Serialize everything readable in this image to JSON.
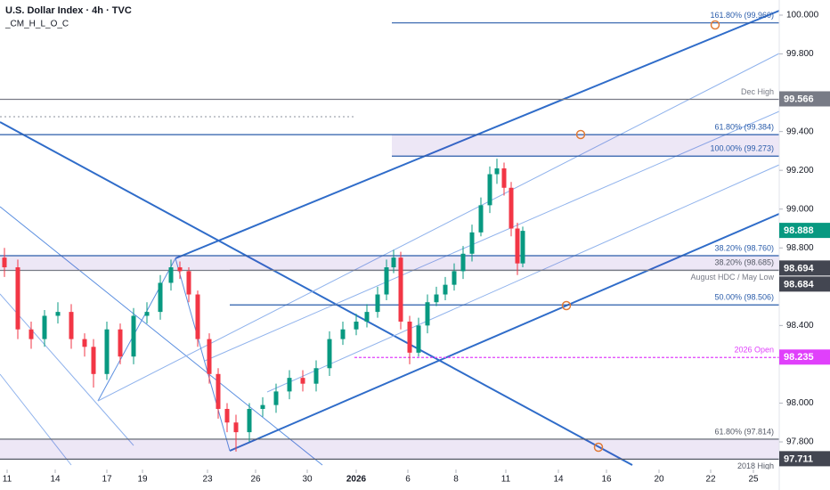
{
  "chart_data": {
    "type": "candlestick",
    "title": "U.S. Dollar Index · 4h · TVC",
    "subtitle": "_CM_H_L_O_C",
    "xlim": [
      0,
      86.5
    ],
    "ylim": [
      97.552,
      100.078
    ],
    "xticks": [
      {
        "value": 0.8,
        "label": "11"
      },
      {
        "value": 6.2,
        "label": "14"
      },
      {
        "value": 12,
        "label": "17"
      },
      {
        "value": 16,
        "label": "19"
      },
      {
        "value": 23.3,
        "label": "23"
      },
      {
        "value": 28.7,
        "label": "26"
      },
      {
        "value": 34.5,
        "label": "30"
      },
      {
        "value": 40,
        "label": "2026"
      },
      {
        "value": 45.8,
        "label": "6"
      },
      {
        "value": 51.2,
        "label": "8"
      },
      {
        "value": 56.8,
        "label": "11"
      },
      {
        "value": 62.7,
        "label": "14"
      },
      {
        "value": 68.1,
        "label": "16"
      },
      {
        "value": 74,
        "label": "20"
      },
      {
        "value": 79.8,
        "label": "22"
      },
      {
        "value": 84.6,
        "label": "25"
      }
    ],
    "yticks": [
      {
        "value": 100,
        "label": "100.000"
      },
      {
        "value": 99.8,
        "label": "99.800"
      },
      {
        "value": 99.4,
        "label": "99.400"
      },
      {
        "value": 99.2,
        "label": "99.200"
      },
      {
        "value": 99,
        "label": "99.000"
      },
      {
        "value": 98.8,
        "label": "98.800"
      },
      {
        "value": 98.4,
        "label": "98.400"
      },
      {
        "value": 98,
        "label": "98.000"
      },
      {
        "value": 97.8,
        "label": "97.800"
      }
    ],
    "up_color": "#089981",
    "down_color": "#f23645",
    "series": {
      "x": [
        0.5,
        2,
        3.5,
        5,
        6.5,
        8,
        9.5,
        10.5,
        12,
        13.5,
        15,
        16.5,
        18,
        19.2,
        20.2,
        21.2,
        22.2,
        23.5,
        24.5,
        25.5,
        26.5,
        28,
        29.5,
        31,
        32.5,
        34,
        35.5,
        37,
        38.5,
        40,
        41.2,
        42.4,
        43.4,
        44.2,
        45,
        46,
        47,
        48,
        49,
        50,
        51,
        52,
        53,
        54,
        55,
        55.8,
        56.6,
        57.4,
        58.1,
        58.7
      ],
      "open": [
        98.75,
        98.7,
        98.38,
        98.33,
        98.45,
        98.47,
        98.33,
        98.29,
        98.15,
        98.38,
        98.24,
        98.45,
        98.47,
        98.62,
        98.7,
        98.68,
        98.56,
        98.33,
        98.15,
        97.97,
        97.9,
        97.85,
        97.97,
        97.99,
        98.06,
        98.13,
        98.1,
        98.18,
        98.33,
        98.38,
        98.42,
        98.47,
        98.56,
        98.7,
        98.75,
        98.42,
        98.26,
        98.4,
        98.52,
        98.56,
        98.61,
        98.68,
        98.77,
        98.88,
        99.02,
        99.18,
        99.21,
        99.11,
        98.9,
        98.72
      ],
      "high": [
        98.8,
        98.74,
        98.42,
        98.48,
        98.52,
        98.51,
        98.36,
        98.33,
        98.42,
        98.41,
        98.49,
        98.52,
        98.66,
        98.74,
        98.73,
        98.7,
        98.58,
        98.36,
        98.18,
        98.0,
        97.94,
        98.0,
        98.03,
        98.1,
        98.17,
        98.17,
        98.22,
        98.37,
        98.42,
        98.46,
        98.51,
        98.6,
        98.74,
        98.79,
        98.78,
        98.45,
        98.44,
        98.56,
        98.6,
        98.65,
        98.72,
        98.81,
        98.92,
        99.06,
        99.22,
        99.26,
        99.24,
        99.14,
        98.93,
        98.91
      ],
      "low": [
        98.65,
        98.33,
        98.28,
        98.29,
        98.41,
        98.28,
        98.24,
        98.08,
        98.12,
        98.2,
        98.2,
        98.41,
        98.43,
        98.58,
        98.64,
        98.52,
        98.29,
        98.1,
        97.92,
        97.85,
        97.75,
        97.8,
        97.93,
        97.95,
        98.02,
        98.06,
        98.06,
        98.14,
        98.3,
        98.35,
        98.39,
        98.44,
        98.53,
        98.67,
        98.38,
        98.2,
        98.24,
        98.36,
        98.5,
        98.53,
        98.58,
        98.64,
        98.73,
        98.86,
        98.98,
        99.13,
        99.07,
        98.86,
        98.66,
        98.7
      ],
      "close": [
        98.7,
        98.38,
        98.33,
        98.45,
        98.47,
        98.33,
        98.29,
        98.15,
        98.38,
        98.24,
        98.45,
        98.47,
        98.62,
        98.7,
        98.68,
        98.56,
        98.33,
        98.15,
        97.97,
        97.9,
        97.85,
        97.97,
        97.99,
        98.06,
        98.13,
        98.1,
        98.18,
        98.33,
        98.38,
        98.42,
        98.47,
        98.56,
        98.7,
        98.75,
        98.42,
        98.26,
        98.4,
        98.52,
        98.56,
        98.61,
        98.68,
        98.77,
        98.88,
        99.02,
        99.18,
        99.21,
        99.11,
        98.9,
        98.72,
        98.888
      ]
    },
    "levels": [
      {
        "text": "161.80% (99.960)",
        "value": 99.96,
        "color": "#2a5caa"
      },
      {
        "text": "Dec High",
        "value": 99.566,
        "color": "#787b86"
      },
      {
        "text": "61.80% (99.384)",
        "value": 99.384,
        "color": "#2a5caa"
      },
      {
        "text": "100.00% (99.273)",
        "value": 99.273,
        "color": "#2a5caa"
      },
      {
        "text": "38.20% (98.760)",
        "value": 98.76,
        "color": "#2a5caa"
      },
      {
        "text": "38.20% (98.685)",
        "value": 98.685,
        "color": "#555a66"
      },
      {
        "text": "August HDC / May Low",
        "value": 98.684,
        "color": "#787b86"
      },
      {
        "text": "50.00% (98.506)",
        "value": 98.506,
        "color": "#2a5caa"
      },
      {
        "text": "2026 Open",
        "value": 98.235,
        "color": "#e040fb"
      },
      {
        "text": "61.80% (97.814)",
        "value": 97.814,
        "color": "#555a66"
      },
      {
        "text": "2018 High",
        "value": 97.711,
        "color": "#555a66"
      }
    ],
    "price_labels": [
      {
        "value": 99.566,
        "color": "#787b86"
      },
      {
        "value": 98.888,
        "color": "#089981"
      },
      {
        "value": 98.694,
        "color": "#434651"
      },
      {
        "value": 98.684,
        "color": "#434651"
      },
      {
        "value": 98.235,
        "color": "#e040fb"
      },
      {
        "value": 97.711,
        "color": "#434651"
      }
    ]
  }
}
